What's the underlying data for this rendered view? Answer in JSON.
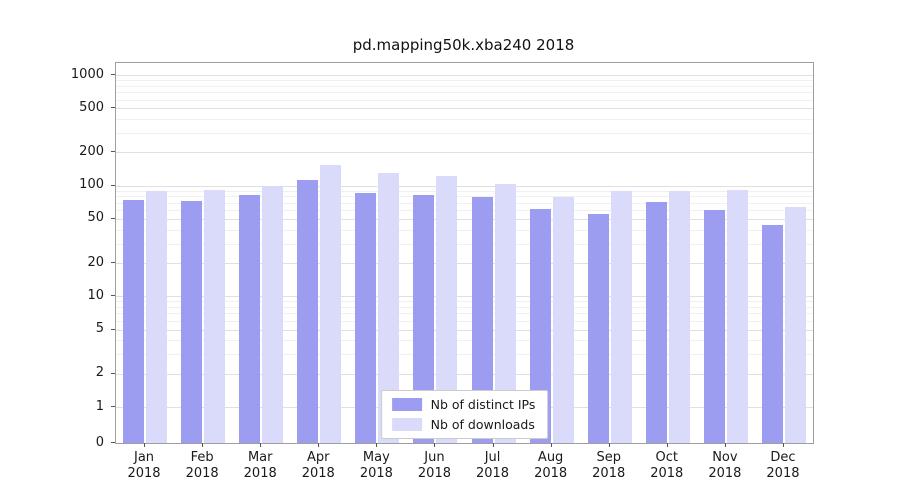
{
  "chart_data": {
    "type": "bar",
    "title": "pd.mapping50k.xba240 2018",
    "categories": [
      "Jan",
      "Feb",
      "Mar",
      "Apr",
      "May",
      "Jun",
      "Jul",
      "Aug",
      "Sep",
      "Oct",
      "Nov",
      "Dec"
    ],
    "x_year_label": "2018",
    "series": [
      {
        "name": "Nb of distinct IPs",
        "color": "#9c9cf0",
        "values": [
          75,
          72,
          83,
          113,
          85,
          83,
          79,
          62,
          55,
          71,
          60,
          44
        ]
      },
      {
        "name": "Nb of downloads",
        "color": "#dadafb",
        "values": [
          90,
          92,
          100,
          155,
          130,
          122,
          103,
          79,
          90,
          90,
          92,
          64
        ]
      }
    ],
    "y_ticks": [
      0,
      1,
      2,
      5,
      10,
      20,
      50,
      100,
      200,
      500,
      1000
    ],
    "y_scale": "symlog",
    "ylim": [
      0,
      1200
    ],
    "grid": true,
    "legend_position": "lower center"
  }
}
